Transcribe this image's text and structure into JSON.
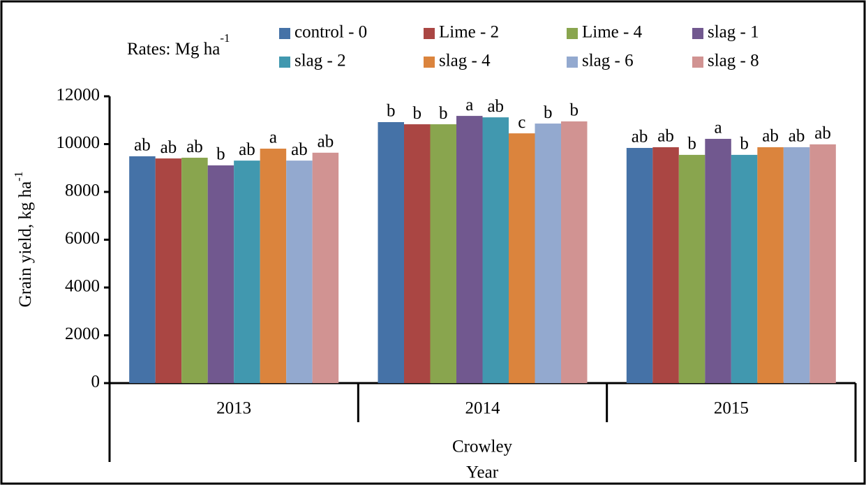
{
  "chart_data": {
    "type": "bar",
    "legend_title": "Rates: Mg ha",
    "legend_title_sup": "-1",
    "y_label": "Grain yield, kg ha",
    "y_label_sup": "-1",
    "group_label": "Crowley",
    "x_label": "Year",
    "categories": [
      "2013",
      "2014",
      "2015"
    ],
    "ylim": [
      0,
      12000
    ],
    "yticks": [
      0,
      2000,
      4000,
      6000,
      8000,
      10000,
      12000
    ],
    "series": [
      {
        "name": "control - 0",
        "color": "#4572A7",
        "values": [
          9490,
          10920,
          9840
        ],
        "letters": [
          "ab",
          "b",
          "ab"
        ]
      },
      {
        "name": "Lime - 2",
        "color": "#AA4643",
        "values": [
          9400,
          10830,
          9870
        ],
        "letters": [
          "ab",
          "b",
          "ab"
        ]
      },
      {
        "name": "Lime - 4",
        "color": "#89A54E",
        "values": [
          9430,
          10830,
          9550
        ],
        "letters": [
          "ab",
          "b",
          "b"
        ]
      },
      {
        "name": "slag - 1",
        "color": "#71588F",
        "values": [
          9110,
          11180,
          10220
        ],
        "letters": [
          "b",
          "a",
          "a"
        ]
      },
      {
        "name": "slag - 2",
        "color": "#4198AF",
        "values": [
          9310,
          11120,
          9550
        ],
        "letters": [
          "ab",
          "ab",
          "b"
        ]
      },
      {
        "name": "slag - 4",
        "color": "#DB843D",
        "values": [
          9810,
          10450,
          9870
        ],
        "letters": [
          "a",
          "c",
          "ab"
        ]
      },
      {
        "name": "slag - 6",
        "color": "#93A9CF",
        "values": [
          9310,
          10860,
          9870
        ],
        "letters": [
          "ab",
          "b",
          "ab"
        ]
      },
      {
        "name": "slag - 8",
        "color": "#D19392",
        "values": [
          9640,
          10950,
          9990
        ],
        "letters": [
          "ab",
          "b",
          "ab"
        ]
      }
    ]
  }
}
